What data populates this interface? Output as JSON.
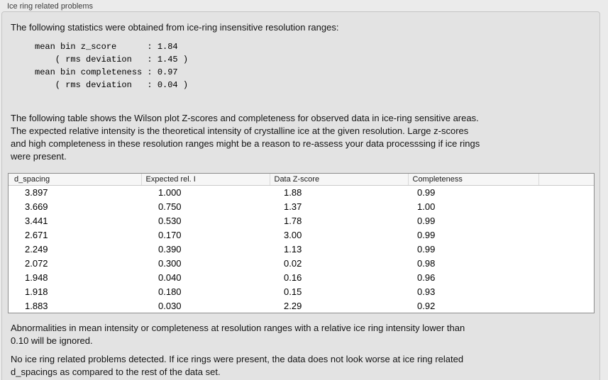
{
  "panel": {
    "title": "Ice ring related problems",
    "intro": "The following statistics were obtained from ice-ring insensitive resolution ranges:",
    "stats_block": "mean bin z_score      : 1.84\n    ( rms deviation   : 1.45 )\nmean bin completeness : 0.97\n    ( rms deviation   : 0.04 )",
    "table_description": "The following table shows the Wilson plot Z-scores and completeness for observed data in ice-ring sensitive areas.\nThe expected relative intensity is the theoretical intensity of crystalline ice at the given resolution. Large z-scores\nand high completeness in these resolution ranges might be a reason to re-assess your data processsing if ice rings\nwere present.",
    "ignore_note": "Abnormalities in mean intensity or completeness at resolution ranges with a relative ice ring intensity lower than\n0.10 will be ignored.",
    "conclusion": "No ice ring related problems detected. If ice rings were present, the data does not look worse at ice ring related\nd_spacings as compared to the rest of the data set."
  },
  "table": {
    "columns": [
      "d_spacing",
      "Expected rel. I",
      "Data Z-score",
      "Completeness"
    ],
    "rows": [
      [
        "3.897",
        "1.000",
        "1.88",
        "0.99"
      ],
      [
        "3.669",
        "0.750",
        "1.37",
        "1.00"
      ],
      [
        "3.441",
        "0.530",
        "1.78",
        "0.99"
      ],
      [
        "2.671",
        "0.170",
        "3.00",
        "0.99"
      ],
      [
        "2.249",
        "0.390",
        "1.13",
        "0.99"
      ],
      [
        "2.072",
        "0.300",
        "0.02",
        "0.98"
      ],
      [
        "1.948",
        "0.040",
        "0.16",
        "0.96"
      ],
      [
        "1.918",
        "0.180",
        "0.15",
        "0.93"
      ],
      [
        "1.883",
        "0.030",
        "2.29",
        "0.92"
      ]
    ]
  },
  "colors": {
    "window_bg": "#ebebeb",
    "panel_bg": "#e3e3e3",
    "panel_border": "#c5c5c5",
    "table_border": "#8c8c8c",
    "table_header_bg": "#f6f6f6",
    "text": "#141414"
  }
}
